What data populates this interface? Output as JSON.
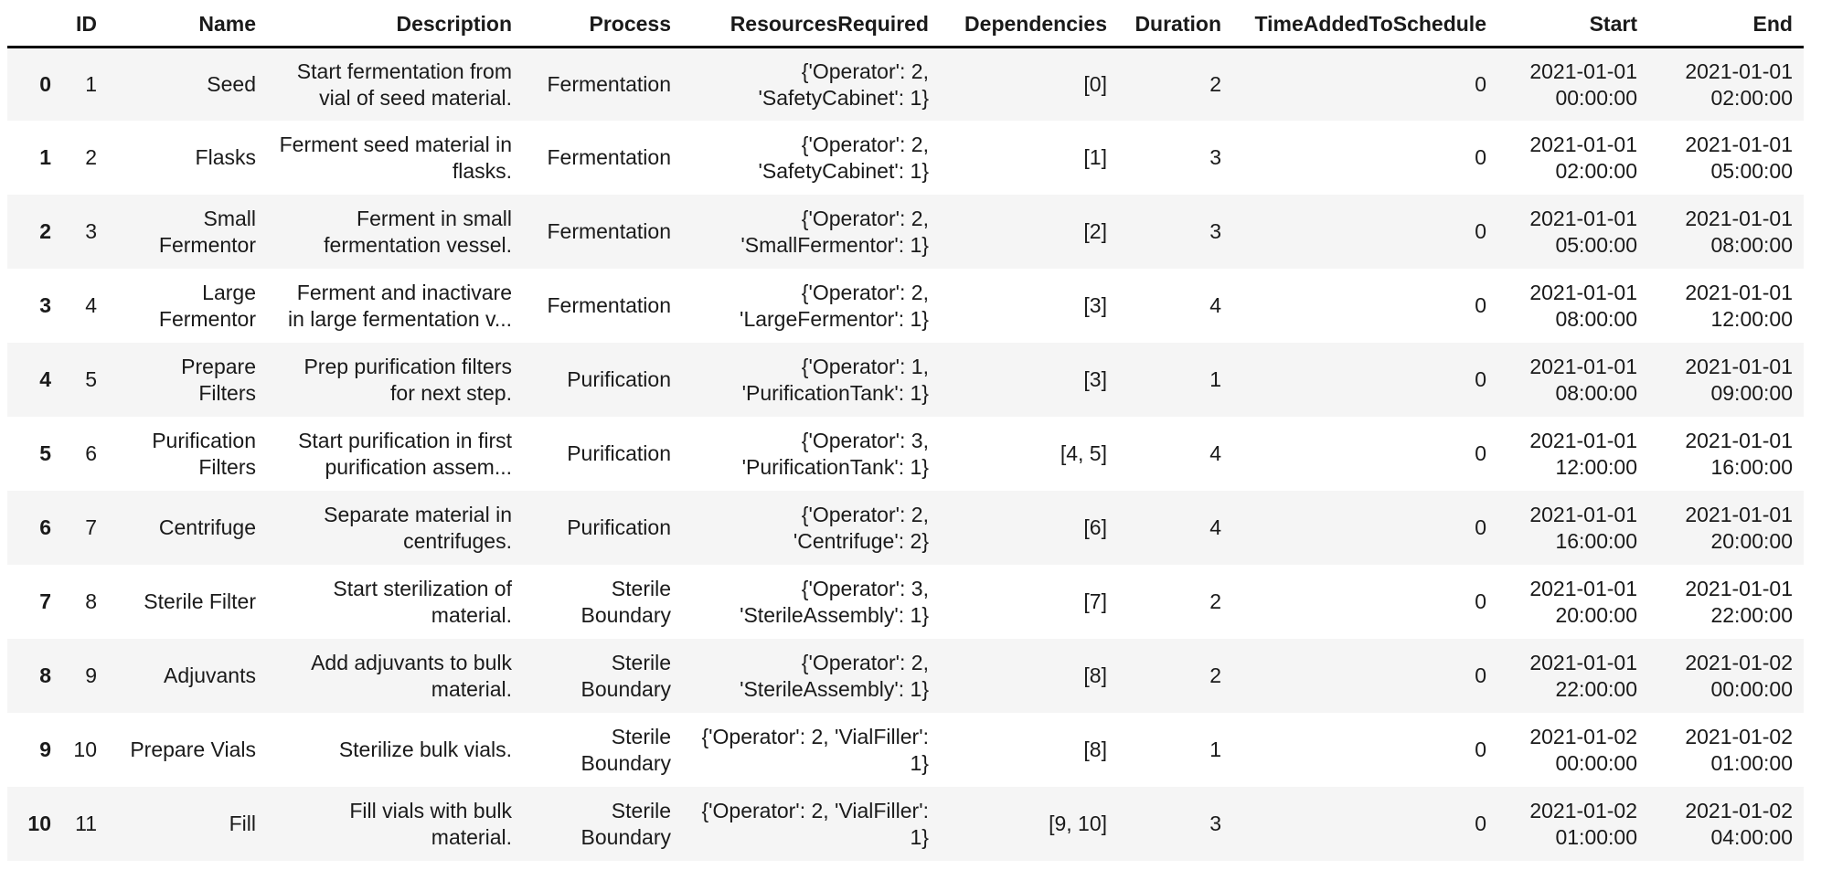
{
  "colors": {
    "background": "#ffffff",
    "stripe": "#f5f5f5",
    "text": "#1a1a1a",
    "header_border": "#000000"
  },
  "chart_data": {
    "type": "table",
    "title": "",
    "columns": [
      {
        "key": "index",
        "label": ""
      },
      {
        "key": "id",
        "label": "ID"
      },
      {
        "key": "name",
        "label": "Name"
      },
      {
        "key": "description",
        "label": "Description"
      },
      {
        "key": "process",
        "label": "Process"
      },
      {
        "key": "resources",
        "label": "ResourcesRequired"
      },
      {
        "key": "dependencies",
        "label": "Dependencies"
      },
      {
        "key": "duration",
        "label": "Duration"
      },
      {
        "key": "time_added",
        "label": "TimeAddedToSchedule"
      },
      {
        "key": "start",
        "label": "Start"
      },
      {
        "key": "end",
        "label": "End"
      }
    ],
    "rows": [
      {
        "index": "0",
        "id": "1",
        "name": "Seed",
        "description": "Start fermentation from vial of seed material.",
        "process": "Fermentation",
        "resources": "{'Operator': 2, 'SafetyCabinet': 1}",
        "dependencies": "[0]",
        "duration": "2",
        "time_added": "0",
        "start": "2021-01-01 00:00:00",
        "end": "2021-01-01 02:00:00"
      },
      {
        "index": "1",
        "id": "2",
        "name": "Flasks",
        "description": "Ferment seed material in flasks.",
        "process": "Fermentation",
        "resources": "{'Operator': 2, 'SafetyCabinet': 1}",
        "dependencies": "[1]",
        "duration": "3",
        "time_added": "0",
        "start": "2021-01-01 02:00:00",
        "end": "2021-01-01 05:00:00"
      },
      {
        "index": "2",
        "id": "3",
        "name": "Small Fermentor",
        "description": "Ferment in small fermentation vessel.",
        "process": "Fermentation",
        "resources": "{'Operator': 2, 'SmallFermentor': 1}",
        "dependencies": "[2]",
        "duration": "3",
        "time_added": "0",
        "start": "2021-01-01 05:00:00",
        "end": "2021-01-01 08:00:00"
      },
      {
        "index": "3",
        "id": "4",
        "name": "Large Fermentor",
        "description": "Ferment and inactivare in large fermentation v...",
        "process": "Fermentation",
        "resources": "{'Operator': 2, 'LargeFermentor': 1}",
        "dependencies": "[3]",
        "duration": "4",
        "time_added": "0",
        "start": "2021-01-01 08:00:00",
        "end": "2021-01-01 12:00:00"
      },
      {
        "index": "4",
        "id": "5",
        "name": "Prepare Filters",
        "description": "Prep purification filters for next step.",
        "process": "Purification",
        "resources": "{'Operator': 1, 'PurificationTank': 1}",
        "dependencies": "[3]",
        "duration": "1",
        "time_added": "0",
        "start": "2021-01-01 08:00:00",
        "end": "2021-01-01 09:00:00"
      },
      {
        "index": "5",
        "id": "6",
        "name": "Purification Filters",
        "description": "Start purification in first purification assem...",
        "process": "Purification",
        "resources": "{'Operator': 3, 'PurificationTank': 1}",
        "dependencies": "[4, 5]",
        "duration": "4",
        "time_added": "0",
        "start": "2021-01-01 12:00:00",
        "end": "2021-01-01 16:00:00"
      },
      {
        "index": "6",
        "id": "7",
        "name": "Centrifuge",
        "description": "Separate material in centrifuges.",
        "process": "Purification",
        "resources": "{'Operator': 2, 'Centrifuge': 2}",
        "dependencies": "[6]",
        "duration": "4",
        "time_added": "0",
        "start": "2021-01-01 16:00:00",
        "end": "2021-01-01 20:00:00"
      },
      {
        "index": "7",
        "id": "8",
        "name": "Sterile Filter",
        "description": "Start sterilization of material.",
        "process": "Sterile Boundary",
        "resources": "{'Operator': 3, 'SterileAssembly': 1}",
        "dependencies": "[7]",
        "duration": "2",
        "time_added": "0",
        "start": "2021-01-01 20:00:00",
        "end": "2021-01-01 22:00:00"
      },
      {
        "index": "8",
        "id": "9",
        "name": "Adjuvants",
        "description": "Add adjuvants to bulk material.",
        "process": "Sterile Boundary",
        "resources": "{'Operator': 2, 'SterileAssembly': 1}",
        "dependencies": "[8]",
        "duration": "2",
        "time_added": "0",
        "start": "2021-01-01 22:00:00",
        "end": "2021-01-02 00:00:00"
      },
      {
        "index": "9",
        "id": "10",
        "name": "Prepare Vials",
        "description": "Sterilize bulk vials.",
        "process": "Sterile Boundary",
        "resources": "{'Operator': 2, 'VialFiller': 1}",
        "dependencies": "[8]",
        "duration": "1",
        "time_added": "0",
        "start": "2021-01-02 00:00:00",
        "end": "2021-01-02 01:00:00"
      },
      {
        "index": "10",
        "id": "11",
        "name": "Fill",
        "description": "Fill vials with bulk material.",
        "process": "Sterile Boundary",
        "resources": "{'Operator': 2, 'VialFiller': 1}",
        "dependencies": "[9, 10]",
        "duration": "3",
        "time_added": "0",
        "start": "2021-01-02 01:00:00",
        "end": "2021-01-02 04:00:00"
      }
    ]
  }
}
